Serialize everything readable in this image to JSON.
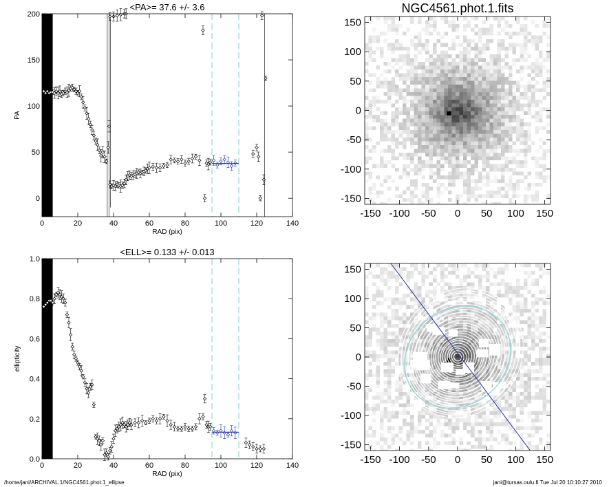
{
  "footer": {
    "left": "/home/jani/ARCHIVAL.1/NGC4561.phot.1_ellipse",
    "right": "jani@tursas.oulu.fi  Tue Jul 20 10:10:27 2010"
  },
  "colors": {
    "guide": "#8fd8e0",
    "fit": "#2233aa",
    "ink": "#000000",
    "contour": "#ffffff"
  },
  "chart_data": [
    {
      "type": "scatter",
      "title": "<PA>=  37.6 +/-   3.6",
      "xlabel": "RAD (pix)",
      "ylabel": "PA",
      "xlim": [
        0,
        140
      ],
      "ylim": [
        -20,
        200
      ],
      "xticks": [
        "0",
        "20",
        "40",
        "60",
        "80",
        "100",
        "120",
        "140"
      ],
      "yticks": [
        "0",
        "50",
        "100",
        "150",
        "200"
      ],
      "masked_band": [
        0,
        6
      ],
      "guides_x": [
        95,
        110
      ],
      "points": [
        [
          1,
          116
        ],
        [
          2,
          114
        ],
        [
          3,
          116
        ],
        [
          4,
          114
        ],
        [
          5,
          115
        ],
        [
          6,
          115
        ],
        [
          7,
          114
        ],
        [
          8,
          116
        ],
        [
          9,
          114
        ],
        [
          10,
          116
        ],
        [
          11,
          113
        ],
        [
          12,
          114
        ],
        [
          13,
          116
        ],
        [
          14,
          115
        ],
        [
          15,
          117
        ],
        [
          16,
          119
        ],
        [
          17,
          120
        ],
        [
          18,
          118
        ],
        [
          19,
          116
        ],
        [
          20,
          114
        ],
        [
          21,
          116
        ],
        [
          22,
          110
        ],
        [
          23,
          104
        ],
        [
          24,
          98
        ],
        [
          25,
          92
        ],
        [
          26,
          86
        ],
        [
          27,
          80
        ],
        [
          28,
          74
        ],
        [
          29,
          68
        ],
        [
          30,
          62
        ],
        [
          31,
          58
        ],
        [
          32,
          52
        ],
        [
          33,
          46
        ],
        [
          34,
          50
        ],
        [
          35,
          45
        ],
        [
          36,
          40
        ],
        [
          37,
          55
        ],
        [
          37.5,
          78
        ],
        [
          38,
          15
        ],
        [
          39,
          13
        ],
        [
          40,
          14
        ],
        [
          41,
          13
        ],
        [
          42,
          15
        ],
        [
          43,
          14
        ],
        [
          44,
          13
        ],
        [
          45,
          14
        ],
        [
          46,
          16
        ],
        [
          47,
          20
        ],
        [
          48,
          24
        ],
        [
          49,
          25
        ],
        [
          50,
          24
        ],
        [
          51,
          25
        ],
        [
          52,
          26
        ],
        [
          53,
          27
        ],
        [
          54,
          28
        ],
        [
          55,
          27
        ],
        [
          56,
          28
        ],
        [
          57,
          29
        ],
        [
          58,
          30
        ],
        [
          59,
          32
        ],
        [
          60,
          33
        ],
        [
          62,
          34
        ],
        [
          64,
          33
        ],
        [
          66,
          33
        ],
        [
          68,
          35
        ],
        [
          70,
          36
        ],
        [
          72,
          42
        ],
        [
          74,
          41
        ],
        [
          76,
          40
        ],
        [
          78,
          42
        ],
        [
          80,
          38
        ],
        [
          82,
          40
        ],
        [
          84,
          43
        ],
        [
          86,
          45
        ],
        [
          88,
          41
        ],
        [
          90,
          182
        ],
        [
          91,
          0
        ],
        [
          92,
          38
        ],
        [
          93,
          37
        ],
        [
          94,
          39
        ]
      ],
      "scatter_high": [
        [
          38,
          197
        ],
        [
          40,
          197
        ],
        [
          42,
          198
        ],
        [
          44,
          199
        ],
        [
          46,
          200
        ],
        [
          47,
          201
        ]
      ],
      "points_fit": [
        [
          96,
          41
        ],
        [
          98,
          36
        ],
        [
          100,
          40
        ],
        [
          102,
          42
        ],
        [
          104,
          39
        ],
        [
          106,
          35
        ],
        [
          108,
          38
        ]
      ],
      "fit_line": [
        [
          95,
          37.6
        ],
        [
          110,
          37.6
        ]
      ],
      "points_far": [
        [
          118,
          48
        ],
        [
          120,
          55
        ],
        [
          121,
          45
        ],
        [
          122,
          0
        ],
        [
          123,
          198
        ],
        [
          124,
          20
        ],
        [
          125,
          130
        ]
      ]
    },
    {
      "type": "scatter",
      "title": "<ELL>= 0.133 +/-  0.013",
      "xlabel": "RAD (pix)",
      "ylabel": "ellipticity",
      "xlim": [
        0,
        140
      ],
      "ylim": [
        0,
        1
      ],
      "xticks": [
        "0",
        "20",
        "40",
        "60",
        "80",
        "100",
        "120",
        "140"
      ],
      "yticks": [
        "0.0",
        "0.2",
        "0.4",
        "0.6",
        "0.8",
        "1.0"
      ],
      "masked_band": [
        0,
        6
      ],
      "guides_x": [
        95,
        110
      ],
      "points": [
        [
          1,
          0.76
        ],
        [
          2,
          0.77
        ],
        [
          3,
          0.78
        ],
        [
          4,
          0.79
        ],
        [
          5,
          0.79
        ],
        [
          6,
          0.78
        ],
        [
          7,
          0.8
        ],
        [
          8,
          0.82
        ],
        [
          9,
          0.83
        ],
        [
          10,
          0.82
        ],
        [
          11,
          0.81
        ],
        [
          12,
          0.8
        ],
        [
          13,
          0.78
        ],
        [
          14,
          0.72
        ],
        [
          15,
          0.68
        ],
        [
          16,
          0.62
        ],
        [
          17,
          0.56
        ],
        [
          18,
          0.52
        ],
        [
          19,
          0.5
        ],
        [
          20,
          0.48
        ],
        [
          21,
          0.46
        ],
        [
          22,
          0.44
        ],
        [
          23,
          0.41
        ],
        [
          24,
          0.38
        ],
        [
          25,
          0.35
        ],
        [
          26,
          0.33
        ],
        [
          27,
          0.36
        ],
        [
          28,
          0.37
        ],
        [
          29,
          0.27
        ],
        [
          30,
          0.11
        ],
        [
          31,
          0.1
        ],
        [
          32,
          0.09
        ],
        [
          33,
          0.07
        ],
        [
          34,
          0.09
        ],
        [
          35,
          0.02
        ],
        [
          36,
          0.03
        ],
        [
          37,
          0.01
        ],
        [
          38,
          0.04
        ],
        [
          39,
          0.06
        ],
        [
          40,
          0.1
        ],
        [
          41,
          0.14
        ],
        [
          42,
          0.15
        ],
        [
          43,
          0.16
        ],
        [
          44,
          0.17
        ],
        [
          45,
          0.18
        ],
        [
          46,
          0.17
        ],
        [
          47,
          0.16
        ],
        [
          48,
          0.17
        ],
        [
          49,
          0.18
        ],
        [
          50,
          0.17
        ],
        [
          52,
          0.18
        ],
        [
          54,
          0.18
        ],
        [
          56,
          0.19
        ],
        [
          58,
          0.18
        ],
        [
          60,
          0.19
        ],
        [
          62,
          0.2
        ],
        [
          64,
          0.19
        ],
        [
          66,
          0.2
        ],
        [
          68,
          0.21
        ],
        [
          70,
          0.19
        ],
        [
          72,
          0.17
        ],
        [
          74,
          0.16
        ],
        [
          76,
          0.15
        ],
        [
          78,
          0.15
        ],
        [
          80,
          0.16
        ],
        [
          82,
          0.15
        ],
        [
          84,
          0.15
        ],
        [
          86,
          0.16
        ],
        [
          88,
          0.2
        ],
        [
          90,
          0.21
        ],
        [
          91,
          0.3
        ],
        [
          92,
          0.17
        ],
        [
          93,
          0.16
        ],
        [
          94,
          0.16
        ]
      ],
      "points_fit": [
        [
          96,
          0.14
        ],
        [
          98,
          0.13
        ],
        [
          100,
          0.14
        ],
        [
          102,
          0.13
        ],
        [
          104,
          0.12
        ],
        [
          106,
          0.14
        ],
        [
          108,
          0.13
        ]
      ],
      "fit_line": [
        [
          95,
          0.133
        ],
        [
          110,
          0.133
        ]
      ],
      "points_far": [
        [
          114,
          0.08
        ],
        [
          116,
          0.07
        ],
        [
          118,
          0.06
        ],
        [
          120,
          0.05
        ],
        [
          122,
          0.05
        ],
        [
          124,
          0.05
        ]
      ]
    },
    {
      "type": "heatmap",
      "title": "NGC4561.phot.1.fits",
      "xlim": [
        -160,
        160
      ],
      "ylim": [
        -160,
        160
      ],
      "xticks": [
        "-150",
        "-100",
        "-50",
        "0",
        "50",
        "100",
        "150"
      ],
      "yticks": [
        "-150",
        "-100",
        "-50",
        "0",
        "50",
        "100",
        "150"
      ]
    },
    {
      "type": "heatmap",
      "title": "",
      "xlim": [
        -160,
        160
      ],
      "ylim": [
        -160,
        160
      ],
      "xticks": [
        "-150",
        "-100",
        "-50",
        "0",
        "50",
        "100",
        "150"
      ],
      "yticks": [
        "-150",
        "-100",
        "-50",
        "0",
        "50",
        "100",
        "150"
      ]
    }
  ]
}
